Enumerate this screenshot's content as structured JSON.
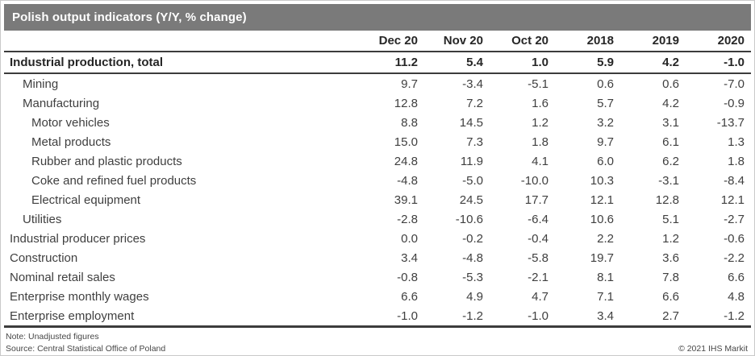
{
  "title": "Polish output indicators (Y/Y, % change)",
  "footer": {
    "note": "Note: Unadjusted figures",
    "source": "Source: Central Statistical Office of Poland",
    "copyright": "© 2021 IHS Markit"
  },
  "colors": {
    "title_bar_bg": "#7a7a7a",
    "title_text": "#ffffff",
    "body_text": "#3f3f3f",
    "bold_text": "#262626",
    "rule": "#3c3c3c",
    "outer_border": "#c9c9c9"
  },
  "chart_data": {
    "type": "table",
    "title": "Polish output indicators (Y/Y, % change)",
    "columns": [
      "Dec 20",
      "Nov 20",
      "Oct 20",
      "2018",
      "2019",
      "2020"
    ],
    "rows": [
      {
        "label": "Industrial production, total",
        "indent": 0,
        "bold": true,
        "values": [
          "11.2",
          "5.4",
          "1.0",
          "5.9",
          "4.2",
          "-1.0"
        ]
      },
      {
        "label": "Mining",
        "indent": 1,
        "bold": false,
        "values": [
          "9.7",
          "-3.4",
          "-5.1",
          "0.6",
          "0.6",
          "-7.0"
        ]
      },
      {
        "label": "Manufacturing",
        "indent": 1,
        "bold": false,
        "values": [
          "12.8",
          "7.2",
          "1.6",
          "5.7",
          "4.2",
          "-0.9"
        ]
      },
      {
        "label": "Motor vehicles",
        "indent": 2,
        "bold": false,
        "values": [
          "8.8",
          "14.5",
          "1.2",
          "3.2",
          "3.1",
          "-13.7"
        ]
      },
      {
        "label": "Metal products",
        "indent": 2,
        "bold": false,
        "values": [
          "15.0",
          "7.3",
          "1.8",
          "9.7",
          "6.1",
          "1.3"
        ]
      },
      {
        "label": "Rubber and plastic products",
        "indent": 2,
        "bold": false,
        "values": [
          "24.8",
          "11.9",
          "4.1",
          "6.0",
          "6.2",
          "1.8"
        ]
      },
      {
        "label": "Coke and refined fuel products",
        "indent": 2,
        "bold": false,
        "values": [
          "-4.8",
          "-5.0",
          "-10.0",
          "10.3",
          "-3.1",
          "-8.4"
        ]
      },
      {
        "label": "Electrical equipment",
        "indent": 2,
        "bold": false,
        "values": [
          "39.1",
          "24.5",
          "17.7",
          "12.1",
          "12.8",
          "12.1"
        ]
      },
      {
        "label": "Utilities",
        "indent": 1,
        "bold": false,
        "values": [
          "-2.8",
          "-10.6",
          "-6.4",
          "10.6",
          "5.1",
          "-2.7"
        ]
      },
      {
        "label": "Industrial producer prices",
        "indent": 0,
        "bold": false,
        "values": [
          "0.0",
          "-0.2",
          "-0.4",
          "2.2",
          "1.2",
          "-0.6"
        ]
      },
      {
        "label": "Construction",
        "indent": 0,
        "bold": false,
        "values": [
          "3.4",
          "-4.8",
          "-5.8",
          "19.7",
          "3.6",
          "-2.2"
        ]
      },
      {
        "label": "Nominal retail sales",
        "indent": 0,
        "bold": false,
        "values": [
          "-0.8",
          "-5.3",
          "-2.1",
          "8.1",
          "7.8",
          "6.6"
        ]
      },
      {
        "label": "Enterprise monthly wages",
        "indent": 0,
        "bold": false,
        "values": [
          "6.6",
          "4.9",
          "4.7",
          "7.1",
          "6.6",
          "4.8"
        ]
      },
      {
        "label": "Enterprise employment",
        "indent": 0,
        "bold": false,
        "values": [
          "-1.0",
          "-1.2",
          "-1.0",
          "3.4",
          "2.7",
          "-1.2"
        ]
      }
    ]
  }
}
